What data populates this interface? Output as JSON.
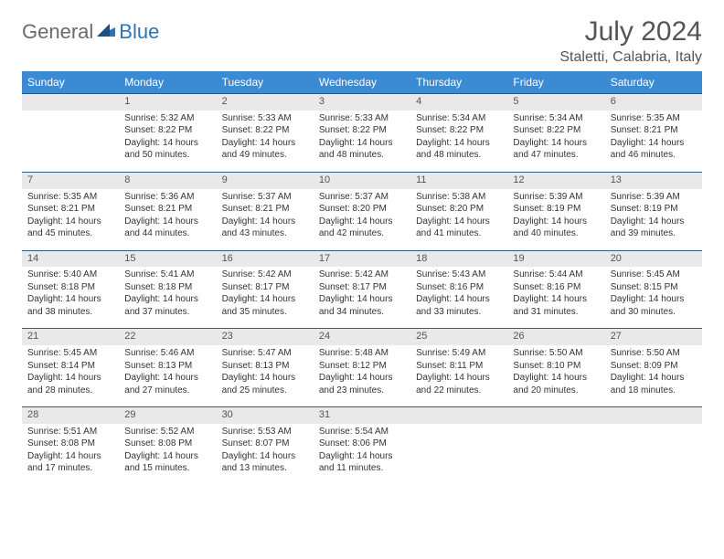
{
  "logo": {
    "general": "General",
    "blue": "Blue"
  },
  "title": {
    "month": "July 2024",
    "location": "Staletti, Calabria, Italy"
  },
  "colors": {
    "header_bg": "#3b8bd4",
    "header_text": "#ffffff",
    "daynum_bg": "#e9e9e9",
    "rule": "#2c5d8a",
    "logo_gray": "#6b6b6b",
    "logo_blue": "#2c73b8"
  },
  "weekdays": [
    "Sunday",
    "Monday",
    "Tuesday",
    "Wednesday",
    "Thursday",
    "Friday",
    "Saturday"
  ],
  "weeks": [
    {
      "nums": [
        "",
        "1",
        "2",
        "3",
        "4",
        "5",
        "6"
      ],
      "cells": [
        null,
        {
          "sunrise": "Sunrise: 5:32 AM",
          "sunset": "Sunset: 8:22 PM",
          "d1": "Daylight: 14 hours",
          "d2": "and 50 minutes."
        },
        {
          "sunrise": "Sunrise: 5:33 AM",
          "sunset": "Sunset: 8:22 PM",
          "d1": "Daylight: 14 hours",
          "d2": "and 49 minutes."
        },
        {
          "sunrise": "Sunrise: 5:33 AM",
          "sunset": "Sunset: 8:22 PM",
          "d1": "Daylight: 14 hours",
          "d2": "and 48 minutes."
        },
        {
          "sunrise": "Sunrise: 5:34 AM",
          "sunset": "Sunset: 8:22 PM",
          "d1": "Daylight: 14 hours",
          "d2": "and 48 minutes."
        },
        {
          "sunrise": "Sunrise: 5:34 AM",
          "sunset": "Sunset: 8:22 PM",
          "d1": "Daylight: 14 hours",
          "d2": "and 47 minutes."
        },
        {
          "sunrise": "Sunrise: 5:35 AM",
          "sunset": "Sunset: 8:21 PM",
          "d1": "Daylight: 14 hours",
          "d2": "and 46 minutes."
        }
      ]
    },
    {
      "nums": [
        "7",
        "8",
        "9",
        "10",
        "11",
        "12",
        "13"
      ],
      "cells": [
        {
          "sunrise": "Sunrise: 5:35 AM",
          "sunset": "Sunset: 8:21 PM",
          "d1": "Daylight: 14 hours",
          "d2": "and 45 minutes."
        },
        {
          "sunrise": "Sunrise: 5:36 AM",
          "sunset": "Sunset: 8:21 PM",
          "d1": "Daylight: 14 hours",
          "d2": "and 44 minutes."
        },
        {
          "sunrise": "Sunrise: 5:37 AM",
          "sunset": "Sunset: 8:21 PM",
          "d1": "Daylight: 14 hours",
          "d2": "and 43 minutes."
        },
        {
          "sunrise": "Sunrise: 5:37 AM",
          "sunset": "Sunset: 8:20 PM",
          "d1": "Daylight: 14 hours",
          "d2": "and 42 minutes."
        },
        {
          "sunrise": "Sunrise: 5:38 AM",
          "sunset": "Sunset: 8:20 PM",
          "d1": "Daylight: 14 hours",
          "d2": "and 41 minutes."
        },
        {
          "sunrise": "Sunrise: 5:39 AM",
          "sunset": "Sunset: 8:19 PM",
          "d1": "Daylight: 14 hours",
          "d2": "and 40 minutes."
        },
        {
          "sunrise": "Sunrise: 5:39 AM",
          "sunset": "Sunset: 8:19 PM",
          "d1": "Daylight: 14 hours",
          "d2": "and 39 minutes."
        }
      ]
    },
    {
      "nums": [
        "14",
        "15",
        "16",
        "17",
        "18",
        "19",
        "20"
      ],
      "cells": [
        {
          "sunrise": "Sunrise: 5:40 AM",
          "sunset": "Sunset: 8:18 PM",
          "d1": "Daylight: 14 hours",
          "d2": "and 38 minutes."
        },
        {
          "sunrise": "Sunrise: 5:41 AM",
          "sunset": "Sunset: 8:18 PM",
          "d1": "Daylight: 14 hours",
          "d2": "and 37 minutes."
        },
        {
          "sunrise": "Sunrise: 5:42 AM",
          "sunset": "Sunset: 8:17 PM",
          "d1": "Daylight: 14 hours",
          "d2": "and 35 minutes."
        },
        {
          "sunrise": "Sunrise: 5:42 AM",
          "sunset": "Sunset: 8:17 PM",
          "d1": "Daylight: 14 hours",
          "d2": "and 34 minutes."
        },
        {
          "sunrise": "Sunrise: 5:43 AM",
          "sunset": "Sunset: 8:16 PM",
          "d1": "Daylight: 14 hours",
          "d2": "and 33 minutes."
        },
        {
          "sunrise": "Sunrise: 5:44 AM",
          "sunset": "Sunset: 8:16 PM",
          "d1": "Daylight: 14 hours",
          "d2": "and 31 minutes."
        },
        {
          "sunrise": "Sunrise: 5:45 AM",
          "sunset": "Sunset: 8:15 PM",
          "d1": "Daylight: 14 hours",
          "d2": "and 30 minutes."
        }
      ]
    },
    {
      "nums": [
        "21",
        "22",
        "23",
        "24",
        "25",
        "26",
        "27"
      ],
      "cells": [
        {
          "sunrise": "Sunrise: 5:45 AM",
          "sunset": "Sunset: 8:14 PM",
          "d1": "Daylight: 14 hours",
          "d2": "and 28 minutes."
        },
        {
          "sunrise": "Sunrise: 5:46 AM",
          "sunset": "Sunset: 8:13 PM",
          "d1": "Daylight: 14 hours",
          "d2": "and 27 minutes."
        },
        {
          "sunrise": "Sunrise: 5:47 AM",
          "sunset": "Sunset: 8:13 PM",
          "d1": "Daylight: 14 hours",
          "d2": "and 25 minutes."
        },
        {
          "sunrise": "Sunrise: 5:48 AM",
          "sunset": "Sunset: 8:12 PM",
          "d1": "Daylight: 14 hours",
          "d2": "and 23 minutes."
        },
        {
          "sunrise": "Sunrise: 5:49 AM",
          "sunset": "Sunset: 8:11 PM",
          "d1": "Daylight: 14 hours",
          "d2": "and 22 minutes."
        },
        {
          "sunrise": "Sunrise: 5:50 AM",
          "sunset": "Sunset: 8:10 PM",
          "d1": "Daylight: 14 hours",
          "d2": "and 20 minutes."
        },
        {
          "sunrise": "Sunrise: 5:50 AM",
          "sunset": "Sunset: 8:09 PM",
          "d1": "Daylight: 14 hours",
          "d2": "and 18 minutes."
        }
      ]
    },
    {
      "nums": [
        "28",
        "29",
        "30",
        "31",
        "",
        "",
        ""
      ],
      "cells": [
        {
          "sunrise": "Sunrise: 5:51 AM",
          "sunset": "Sunset: 8:08 PM",
          "d1": "Daylight: 14 hours",
          "d2": "and 17 minutes."
        },
        {
          "sunrise": "Sunrise: 5:52 AM",
          "sunset": "Sunset: 8:08 PM",
          "d1": "Daylight: 14 hours",
          "d2": "and 15 minutes."
        },
        {
          "sunrise": "Sunrise: 5:53 AM",
          "sunset": "Sunset: 8:07 PM",
          "d1": "Daylight: 14 hours",
          "d2": "and 13 minutes."
        },
        {
          "sunrise": "Sunrise: 5:54 AM",
          "sunset": "Sunset: 8:06 PM",
          "d1": "Daylight: 14 hours",
          "d2": "and 11 minutes."
        },
        null,
        null,
        null
      ]
    }
  ]
}
